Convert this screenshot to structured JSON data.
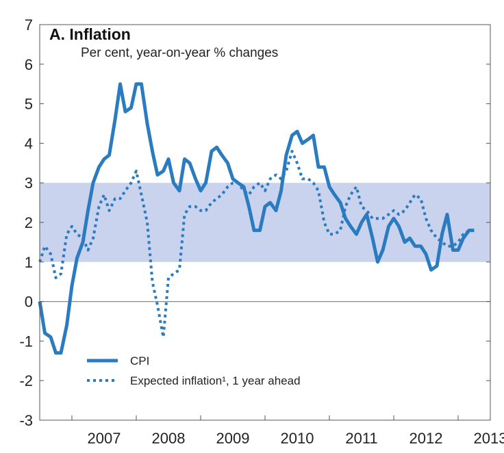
{
  "chart_data": {
    "type": "line",
    "title": "A. Inflation",
    "subtitle": "Per cent, year-on-year % changes",
    "ylim": [
      -3,
      7
    ],
    "yticks": [
      "-3",
      "-2",
      "-1",
      "0",
      "1",
      "2",
      "3",
      "4",
      "5",
      "6",
      "7"
    ],
    "xlim": [
      2006.5,
      2013.5
    ],
    "xtick_labels": [
      "2007",
      "2008",
      "2009",
      "2010",
      "2011",
      "2012",
      "2013"
    ],
    "target_band": [
      1,
      3
    ],
    "colors": {
      "band": "#c9d3ee",
      "line": "#2a7bbf",
      "zero_line": "#888888",
      "axis": "#555555"
    },
    "series": [
      {
        "name": "CPI",
        "style": "solid",
        "x": [
          2006.5,
          2006.58,
          2006.67,
          2006.75,
          2006.83,
          2006.92,
          2007.0,
          2007.08,
          2007.17,
          2007.25,
          2007.33,
          2007.42,
          2007.5,
          2007.58,
          2007.67,
          2007.75,
          2007.83,
          2007.92,
          2008.0,
          2008.08,
          2008.17,
          2008.25,
          2008.33,
          2008.42,
          2008.5,
          2008.58,
          2008.67,
          2008.75,
          2008.83,
          2008.92,
          2009.0,
          2009.08,
          2009.17,
          2009.25,
          2009.33,
          2009.42,
          2009.5,
          2009.58,
          2009.67,
          2009.75,
          2009.83,
          2009.92,
          2010.0,
          2010.08,
          2010.17,
          2010.25,
          2010.33,
          2010.42,
          2010.5,
          2010.58,
          2010.67,
          2010.75,
          2010.83,
          2010.92,
          2011.0,
          2011.08,
          2011.17,
          2011.25,
          2011.33,
          2011.42,
          2011.5,
          2011.58,
          2011.67,
          2011.75,
          2011.83,
          2011.92,
          2012.0,
          2012.08,
          2012.17,
          2012.25,
          2012.33,
          2012.42,
          2012.5,
          2012.58,
          2012.67,
          2012.75,
          2012.83,
          2012.92,
          2013.0,
          2013.08,
          2013.17,
          2013.25
        ],
        "values": [
          0.0,
          -0.8,
          -0.9,
          -1.3,
          -1.3,
          -0.6,
          0.4,
          1.1,
          1.5,
          2.3,
          3.0,
          3.4,
          3.6,
          3.7,
          4.6,
          5.5,
          4.8,
          4.9,
          5.5,
          5.5,
          4.5,
          3.8,
          3.2,
          3.3,
          3.6,
          3.0,
          2.8,
          3.6,
          3.5,
          3.1,
          2.8,
          3.0,
          3.8,
          3.9,
          3.7,
          3.5,
          3.1,
          3.0,
          2.9,
          2.4,
          1.8,
          1.8,
          2.4,
          2.5,
          2.3,
          2.8,
          3.7,
          4.2,
          4.3,
          4.0,
          4.1,
          4.2,
          3.4,
          3.4,
          2.9,
          2.7,
          2.5,
          2.1,
          1.9,
          1.7,
          2.0,
          2.2,
          1.6,
          1.0,
          1.3,
          1.9,
          2.1,
          1.9,
          1.5,
          1.6,
          1.4,
          1.4,
          1.2,
          0.8,
          0.9,
          1.7,
          2.2,
          1.3,
          1.3,
          1.6,
          1.8,
          1.8
        ]
      },
      {
        "name": "Expected inflation¹, 1 year ahead",
        "style": "dotted",
        "x": [
          2006.5,
          2006.58,
          2006.67,
          2006.75,
          2006.83,
          2006.92,
          2007.0,
          2007.08,
          2007.17,
          2007.25,
          2007.33,
          2007.42,
          2007.5,
          2007.58,
          2007.67,
          2007.75,
          2007.83,
          2007.92,
          2008.0,
          2008.08,
          2008.17,
          2008.25,
          2008.33,
          2008.42,
          2008.5,
          2008.58,
          2008.67,
          2008.75,
          2008.83,
          2008.92,
          2009.0,
          2009.08,
          2009.17,
          2009.25,
          2009.33,
          2009.42,
          2009.5,
          2009.58,
          2009.67,
          2009.75,
          2009.83,
          2009.92,
          2010.0,
          2010.08,
          2010.17,
          2010.25,
          2010.33,
          2010.42,
          2010.5,
          2010.58,
          2010.67,
          2010.75,
          2010.83,
          2010.92,
          2011.0,
          2011.08,
          2011.17,
          2011.25,
          2011.33,
          2011.42,
          2011.5,
          2011.58,
          2011.67,
          2011.75,
          2011.83,
          2011.92,
          2012.0,
          2012.08,
          2012.17,
          2012.25,
          2012.33,
          2012.42,
          2012.5,
          2012.58,
          2012.67,
          2012.75,
          2012.83,
          2012.92,
          2013.0,
          2013.08,
          2013.17,
          2013.25
        ],
        "values": [
          1.0,
          1.4,
          1.2,
          0.6,
          0.7,
          1.7,
          1.9,
          1.7,
          1.6,
          1.3,
          1.6,
          2.4,
          2.7,
          2.3,
          2.6,
          2.6,
          2.8,
          3.0,
          3.3,
          2.7,
          2.0,
          0.5,
          -0.1,
          -0.9,
          0.6,
          0.7,
          0.8,
          2.2,
          2.4,
          2.4,
          2.3,
          2.3,
          2.5,
          2.6,
          2.7,
          2.9,
          3.0,
          3.0,
          2.8,
          2.7,
          2.9,
          3.0,
          2.8,
          3.1,
          3.2,
          3.1,
          3.3,
          3.8,
          3.5,
          3.1,
          3.1,
          3.0,
          2.8,
          2.0,
          1.7,
          1.7,
          1.8,
          2.4,
          2.7,
          2.9,
          2.4,
          2.3,
          2.1,
          2.1,
          2.1,
          2.2,
          2.3,
          2.2,
          2.3,
          2.5,
          2.7,
          2.6,
          2.1,
          1.8,
          1.6,
          1.5,
          1.4,
          1.4,
          1.5,
          1.7,
          1.8,
          1.8
        ]
      }
    ],
    "legend": {
      "placement": "bottom-left"
    }
  }
}
